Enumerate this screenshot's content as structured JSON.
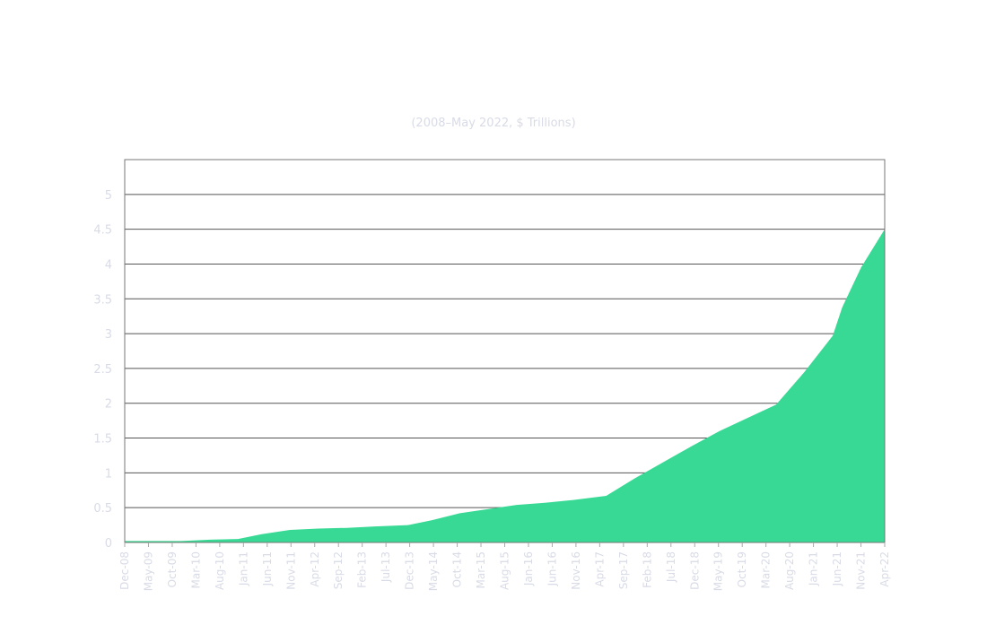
{
  "chart_data": {
    "type": "area",
    "subtitle": "(2008–May 2022, $ Trillions)",
    "ylim": [
      0,
      5.5
    ],
    "yticks": [
      "0",
      "0.5",
      "1",
      "1.5",
      "2",
      "2.5",
      "3",
      "3.5",
      "4",
      "4.5",
      "5"
    ],
    "x_tick_labels": [
      "Dec-08",
      "May-09",
      "Oct-09",
      "Mar-10",
      "Aug-10",
      "Jan-11",
      "Jun-11",
      "Nov-11",
      "Apr-12",
      "Sep-12",
      "Feb-13",
      "Jul-13",
      "Dec-13",
      "May-14",
      "Oct-14",
      "Mar-15",
      "Aug-15",
      "Jan-16",
      "Jun-16",
      "Nov-16",
      "Apr-17",
      "Sep-17",
      "Feb-18",
      "Jul-18",
      "Dec-18",
      "May-19",
      "Oct-19",
      "Mar-20",
      "Aug-20",
      "Jan-21",
      "Jun-21",
      "Nov-21",
      "Apr-22"
    ],
    "x_range": [
      "2008-12",
      "2022-05"
    ],
    "grid": true,
    "color": "#38d995",
    "series": [
      {
        "points": [
          [
            "2008-12",
            0.02
          ],
          [
            "2009-06",
            0.02
          ],
          [
            "2009-12",
            0.02
          ],
          [
            "2010-06",
            0.04
          ],
          [
            "2010-12",
            0.05
          ],
          [
            "2011-05",
            0.12
          ],
          [
            "2011-11",
            0.18
          ],
          [
            "2012-05",
            0.2
          ],
          [
            "2012-11",
            0.21
          ],
          [
            "2013-05",
            0.23
          ],
          [
            "2013-12",
            0.25
          ],
          [
            "2014-05",
            0.32
          ],
          [
            "2014-11",
            0.42
          ],
          [
            "2015-05",
            0.48
          ],
          [
            "2015-11",
            0.54
          ],
          [
            "2016-05",
            0.57
          ],
          [
            "2016-11",
            0.61
          ],
          [
            "2017-06",
            0.67
          ],
          [
            "2017-12",
            0.92
          ],
          [
            "2018-06",
            1.15
          ],
          [
            "2018-12",
            1.38
          ],
          [
            "2019-06",
            1.6
          ],
          [
            "2019-12",
            1.79
          ],
          [
            "2020-06",
            1.98
          ],
          [
            "2020-12",
            2.45
          ],
          [
            "2021-06",
            2.97
          ],
          [
            "2021-08",
            3.38
          ],
          [
            "2021-12",
            3.95
          ],
          [
            "2022-05",
            4.5
          ]
        ]
      }
    ]
  }
}
